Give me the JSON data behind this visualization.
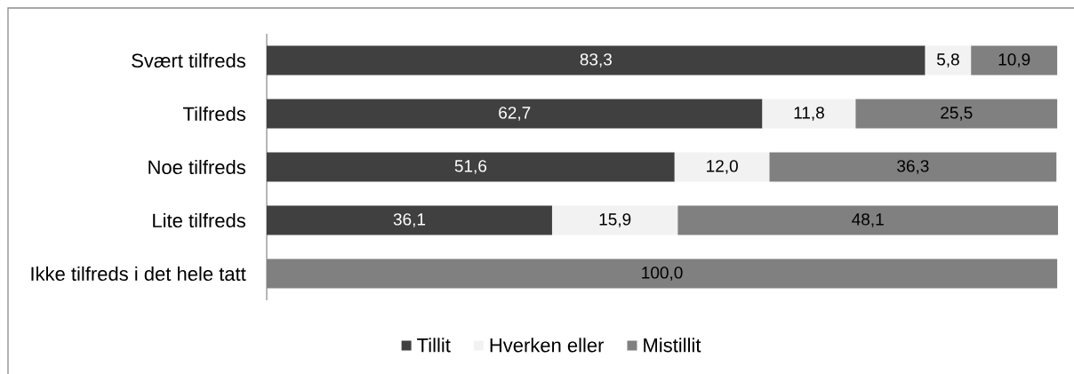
{
  "chart_data": {
    "type": "bar",
    "orientation": "horizontal",
    "stacked": true,
    "legend": "bottom",
    "categories": [
      "Svært tilfreds",
      "Tilfreds",
      "Noe tilfreds",
      "Lite tilfreds",
      "Ikke tilfreds i det hele tatt"
    ],
    "series": [
      {
        "name": "Tillit",
        "color": "#404040",
        "values": [
          83.3,
          62.7,
          51.6,
          36.1,
          null
        ],
        "value_labels": [
          "83,3",
          "62,7",
          "51,6",
          "36,1",
          null
        ]
      },
      {
        "name": "Hverken eller",
        "color": "#f2f2f2",
        "values": [
          5.8,
          11.8,
          12.0,
          15.9,
          null
        ],
        "value_labels": [
          "5,8",
          "11,8",
          "12,0",
          "15,9",
          null
        ]
      },
      {
        "name": "Mistillit",
        "color": "#808080",
        "values": [
          10.9,
          25.5,
          36.3,
          48.1,
          100.0
        ],
        "value_labels": [
          "10,9",
          "25,5",
          "36,3",
          "48,1",
          "100,0"
        ]
      }
    ]
  }
}
